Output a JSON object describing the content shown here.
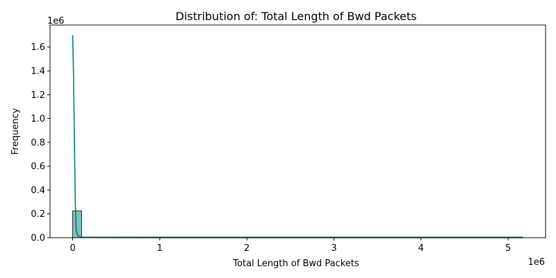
{
  "chart_data": {
    "type": "bar",
    "title": "Distribution of: Total Length of Bwd Packets",
    "xlabel": "Total Length of Bwd Packets",
    "ylabel": "Frequency",
    "x_offset_label": "1e6",
    "y_offset_label": "1e6",
    "x_scale": 1000000,
    "y_scale": 1000000,
    "xlim": [
      -260000,
      5430000
    ],
    "ylim": [
      0,
      1785000
    ],
    "x_ticks": [
      0,
      1000000,
      2000000,
      3000000,
      4000000,
      5000000
    ],
    "x_tick_labels": [
      "0",
      "1",
      "2",
      "3",
      "4",
      "5"
    ],
    "y_ticks": [
      0,
      200000,
      400000,
      600000,
      800000,
      1000000,
      1200000,
      1400000,
      1600000
    ],
    "y_tick_labels": [
      "0.0",
      "0.2",
      "0.4",
      "0.6",
      "0.8",
      "1.0",
      "1.2",
      "1.4",
      "1.6"
    ],
    "bins": [
      {
        "x0": 0,
        "x1": 103000,
        "count": 226000
      },
      {
        "x0": 103000,
        "x1": 5170000,
        "count": 0
      }
    ],
    "kde": {
      "x": [
        0,
        10000,
        20000,
        30000,
        40000,
        60000,
        100000,
        200000,
        500000,
        1000000,
        2000000,
        3000000,
        4000000,
        5000000,
        5170000
      ],
      "y": [
        1700000,
        1350000,
        800000,
        300000,
        60000,
        15000,
        4000,
        1500,
        800,
        500,
        300,
        200,
        150,
        100,
        100
      ]
    },
    "colors": {
      "bar_fill": "#7fbfbf",
      "bar_edge": "#000000",
      "kde_line": "#008080",
      "axis": "#000000"
    },
    "grid": false
  }
}
